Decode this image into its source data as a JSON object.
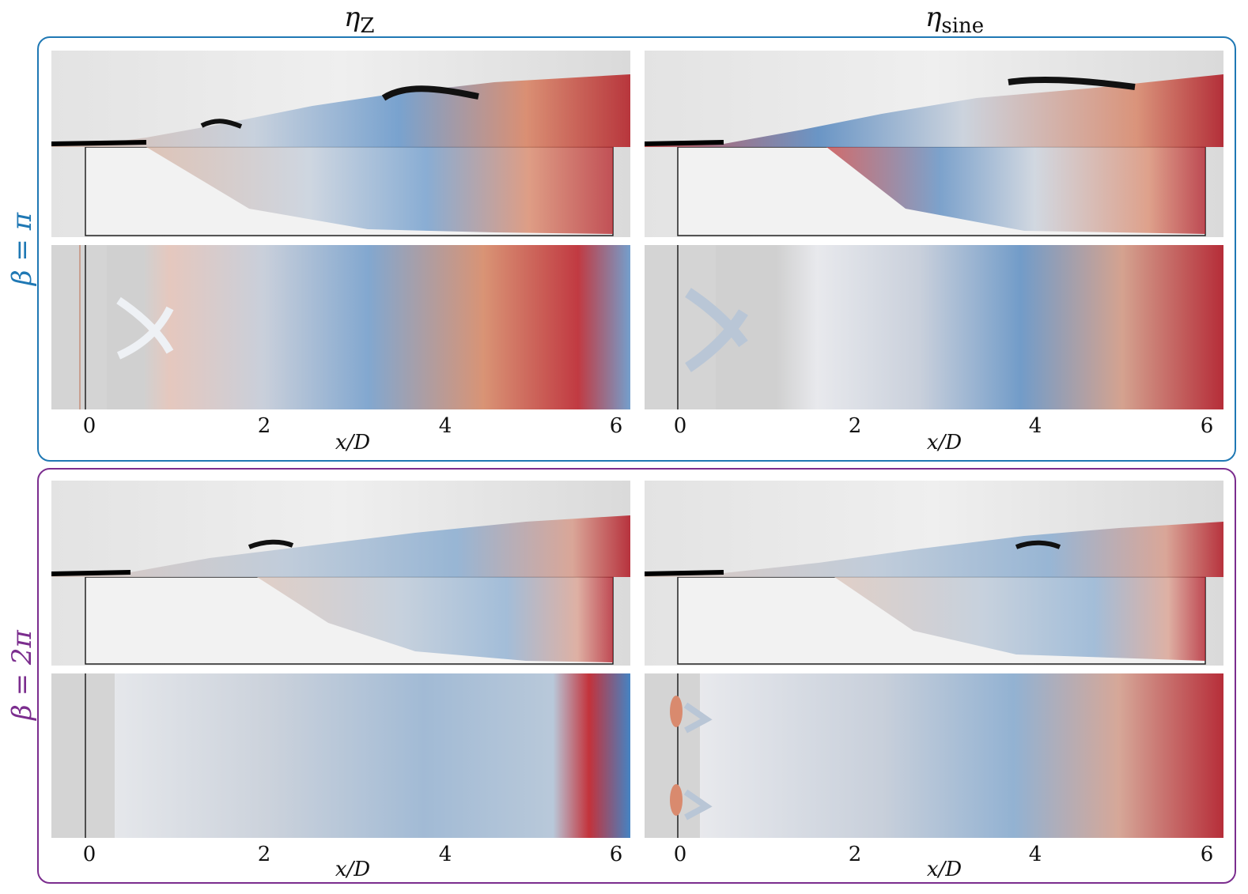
{
  "columns": [
    {
      "symbol": "η",
      "subscript": "Z"
    },
    {
      "symbol": "η",
      "subscript": "sine"
    }
  ],
  "rows": [
    {
      "label": "β = π",
      "color": "#1f78b4"
    },
    {
      "label": "β = 2π",
      "color": "#7b2d8e"
    }
  ],
  "axis": {
    "ticks": [
      "0",
      "2",
      "4",
      "6"
    ],
    "xlabel": "x/D"
  },
  "colors": {
    "warm": "#c4202c",
    "cool": "#2f6fb0",
    "neutral": "#c9ccd2",
    "background_gray": "#d4d4d4"
  }
}
